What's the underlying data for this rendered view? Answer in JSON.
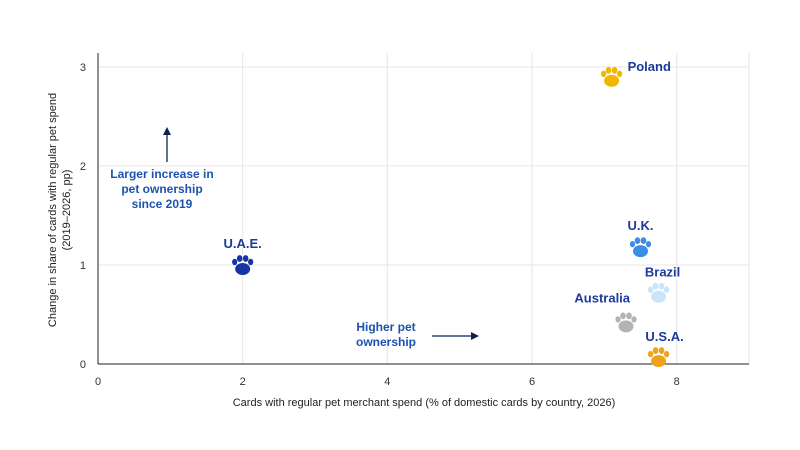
{
  "chart_data": {
    "type": "scatter",
    "xlabel": "Cards with regular pet merchant spend (% of domestic cards by country, 2026)",
    "ylabel": [
      "Change in share of cards with regular pet spend",
      "(2019–2026, pp)"
    ],
    "xlim": [
      0,
      9
    ],
    "ylim": [
      0,
      3.1
    ],
    "x_ticks": [
      "0",
      "2",
      "4",
      "6",
      "8"
    ],
    "y_ticks": [
      "0",
      "1",
      "2",
      "3"
    ],
    "grid": true,
    "marker": "paw-icon",
    "points": [
      {
        "label": "Poland",
        "x": 7.1,
        "y": 2.9,
        "color": "#f2b600"
      },
      {
        "label": "U.A.E.",
        "x": 2.0,
        "y": 1.0,
        "color": "#1434a8"
      },
      {
        "label": "U.K.",
        "x": 7.5,
        "y": 1.18,
        "color": "#3b8ee6"
      },
      {
        "label": "Brazil",
        "x": 7.75,
        "y": 0.72,
        "color": "#c9e4fb"
      },
      {
        "label": "Australia",
        "x": 7.3,
        "y": 0.42,
        "color": "#b3b3b3"
      },
      {
        "label": "U.S.A.",
        "x": 7.75,
        "y": 0.07,
        "color": "#f0a21a"
      }
    ],
    "annotations": [
      {
        "lines": [
          "Larger increase in",
          "pet ownership",
          "since 2019"
        ],
        "arrow": "up"
      },
      {
        "lines": [
          "Higher pet",
          "ownership"
        ],
        "arrow": "right"
      }
    ]
  }
}
